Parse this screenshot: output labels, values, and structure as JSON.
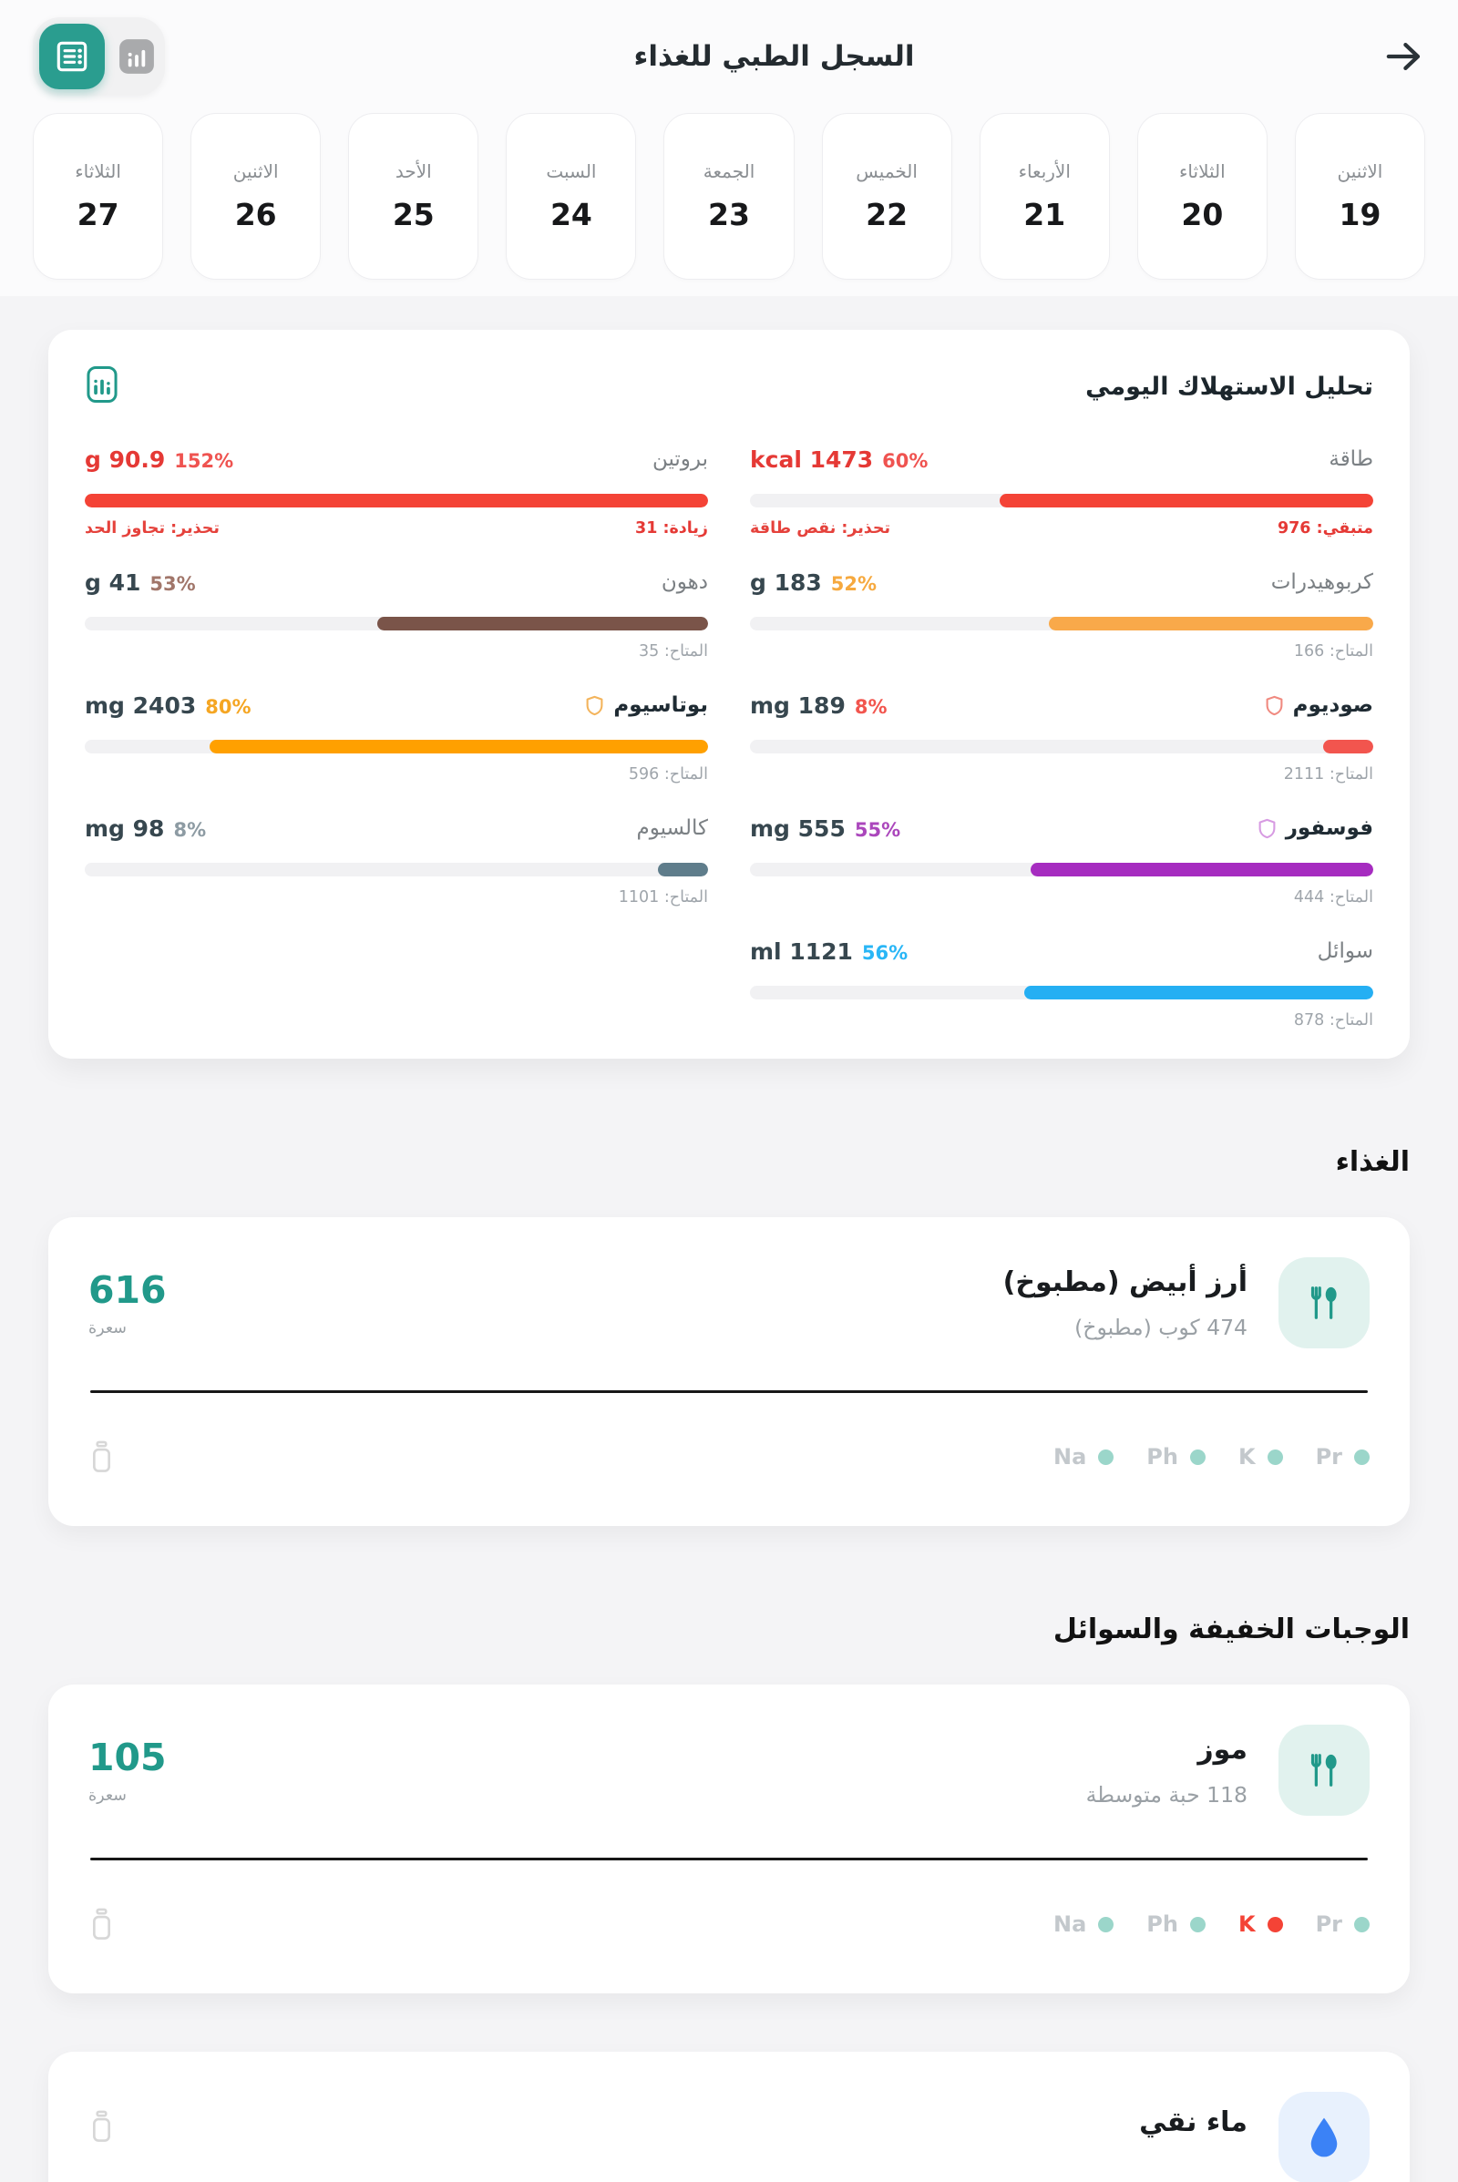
{
  "header": {
    "title": "السجل الطبي للغذاء",
    "icons": {
      "back": "arrow-right-icon",
      "toggle_inactive": "bar-chart-icon",
      "toggle_active": "list-card-icon"
    }
  },
  "colors": {
    "teal": "#21998a",
    "teal_bg": "#e1f2ee",
    "water_blue": "#3b82f6",
    "water_bg": "#e8f1fd",
    "dot_ok": "#9bd6ca",
    "dot_alert": "#f44336",
    "mineral_label": "#c3c8cc",
    "mineral_label_alert": "#f44336"
  },
  "date_strip": {
    "days": [
      {
        "name": "الاثنين",
        "num": "19"
      },
      {
        "name": "الثلاثاء",
        "num": "20"
      },
      {
        "name": "الأربعاء",
        "num": "21"
      },
      {
        "name": "الخميس",
        "num": "22"
      },
      {
        "name": "الجمعة",
        "num": "23"
      },
      {
        "name": "السبت",
        "num": "24"
      },
      {
        "name": "الأحد",
        "num": "25"
      },
      {
        "name": "الاثنين",
        "num": "26"
      },
      {
        "name": "الثلاثاء",
        "num": "27"
      }
    ]
  },
  "analysis": {
    "title": "تحليل الاستهلاك اليومي",
    "header_icon": "bar-chart-frame-icon",
    "nutrients": [
      {
        "label": "طاقة",
        "strong": false,
        "shield": null,
        "value": "kcal 1473",
        "percent": "60%",
        "pct": 60,
        "fill": "#f44336",
        "value_color": "#e53935",
        "percent_color": "#ef5350",
        "sub_right": "متبقي: 976",
        "sub_right_alert": true,
        "sub_left": "تحذير: نقص طاقة"
      },
      {
        "label": "بروتين",
        "strong": false,
        "shield": null,
        "value": "g 90.9",
        "percent": "152%",
        "pct": 100,
        "fill": "#f44336",
        "value_color": "#e53935",
        "percent_color": "#ef5350",
        "sub_right": "زيادة: 31",
        "sub_right_alert": true,
        "sub_left": "تحذير: تجاوز الحد"
      },
      {
        "label": "كربوهيدرات",
        "strong": false,
        "shield": null,
        "value": "g 183",
        "percent": "52%",
        "pct": 52,
        "fill": "#f9a94a",
        "value_color": "#37474f",
        "percent_color": "#f6a93f",
        "sub_right": "المتاح: 166",
        "sub_right_alert": false,
        "sub_left": ""
      },
      {
        "label": "دهون",
        "strong": false,
        "shield": null,
        "value": "g 41",
        "percent": "53%",
        "pct": 53,
        "fill": "#7a5449",
        "value_color": "#37474f",
        "percent_color": "#a1766a",
        "sub_right": "المتاح: 35",
        "sub_right_alert": false,
        "sub_left": ""
      },
      {
        "label": "صوديوم",
        "strong": true,
        "shield": "#f08a80",
        "value": "mg 189",
        "percent": "8%",
        "pct": 8,
        "fill": "#f2554e",
        "value_color": "#37474f",
        "percent_color": "#f2554e",
        "sub_right": "المتاح: 2111",
        "sub_right_alert": false,
        "sub_left": ""
      },
      {
        "label": "بوتاسيوم",
        "strong": true,
        "shield": "#f3b45c",
        "value": "mg 2403",
        "percent": "80%",
        "pct": 80,
        "fill": "#ffa000",
        "value_color": "#37474f",
        "percent_color": "#f5a623",
        "sub_right": "المتاح: 596",
        "sub_right_alert": false,
        "sub_left": ""
      },
      {
        "label": "فوسفور",
        "strong": true,
        "shield": "#d79be2",
        "value": "mg 555",
        "percent": "55%",
        "pct": 55,
        "fill": "#a62cc0",
        "value_color": "#37474f",
        "percent_color": "#ab47bc",
        "sub_right": "المتاح: 444",
        "sub_right_alert": false,
        "sub_left": ""
      },
      {
        "label": "كالسيوم",
        "strong": false,
        "shield": null,
        "value": "mg 98",
        "percent": "8%",
        "pct": 8,
        "fill": "#5f7d8b",
        "value_color": "#37474f",
        "percent_color": "#8d9ba3",
        "sub_right": "المتاح: 1101",
        "sub_right_alert": false,
        "sub_left": ""
      },
      {
        "label": "سوائل",
        "strong": false,
        "shield": null,
        "value": "ml 1121",
        "percent": "56%",
        "pct": 56,
        "fill": "#25aff3",
        "value_color": "#37474f",
        "percent_color": "#29b6f6",
        "sub_right": "المتاح: 878",
        "sub_right_alert": false,
        "sub_left": ""
      }
    ]
  },
  "food_sections": [
    {
      "heading": "الغذاء",
      "items": [
        {
          "type": "meal",
          "icon": "cutlery-icon",
          "name": "أرز أبيض (مطبوخ)",
          "portion": "474 كوب (مطبوخ)",
          "calories": "616",
          "cal_unit": "سعرة",
          "minerals": [
            {
              "label": "Na",
              "alert": false
            },
            {
              "label": "Ph",
              "alert": false
            },
            {
              "label": "K",
              "alert": false
            },
            {
              "label": "Pr",
              "alert": false
            }
          ]
        }
      ]
    },
    {
      "heading": "الوجبات الخفيفة والسوائل",
      "items": [
        {
          "type": "meal",
          "icon": "cutlery-icon",
          "name": "موز",
          "portion": "118 حبة متوسطة",
          "calories": "105",
          "cal_unit": "سعرة",
          "minerals": [
            {
              "label": "Na",
              "alert": false
            },
            {
              "label": "Ph",
              "alert": false
            },
            {
              "label": "K",
              "alert": true
            },
            {
              "label": "Pr",
              "alert": false
            }
          ]
        },
        {
          "type": "fluid",
          "icon": "droplet-icon",
          "name": "ماء نقي"
        }
      ]
    }
  ]
}
